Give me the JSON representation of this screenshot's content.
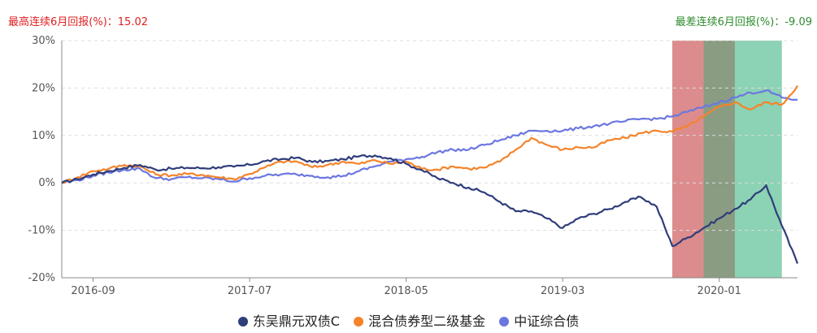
{
  "header": {
    "best_label": "最高连续6月回报(%)：",
    "best_value": "15.02",
    "worst_label": "最差连续6月回报(%)：",
    "worst_value": "-9.09"
  },
  "colors": {
    "fund": "#2f3d7a",
    "bond2": "#f5832a",
    "index": "#6b77e0",
    "best_band": "#dc8c8c",
    "worst_band": "#8cd2b4",
    "overlap_band": "#8a9c82",
    "best_text": "#e02020",
    "worst_text": "#2e8b2e"
  },
  "chart_data": {
    "type": "line",
    "x_tick_labels": [
      "2016-09",
      "2017-07",
      "2018-05",
      "2019-03",
      "2020-01"
    ],
    "x_range": [
      "2016-07",
      "2020-06"
    ],
    "ylim": [
      -20,
      30
    ],
    "y_ticks": [
      -20,
      -10,
      0,
      10,
      20,
      30
    ],
    "y_unit": "%",
    "grid": "horizontal-dashed",
    "legend_position": "bottom",
    "highlight_bands": [
      {
        "label": "最高连续6月回报",
        "start": "2019-10",
        "end": "2020-02"
      },
      {
        "label": "最差连续6月回报",
        "start": "2019-12",
        "end": "2020-05"
      }
    ],
    "series": [
      {
        "name": "东吴鼎元双债C",
        "color_key": "fund",
        "points": [
          [
            "2016-07",
            0
          ],
          [
            "2016-08",
            0.8
          ],
          [
            "2016-09",
            1.8
          ],
          [
            "2016-10",
            2.5
          ],
          [
            "2016-11",
            3.2
          ],
          [
            "2016-12",
            3.8
          ],
          [
            "2017-01",
            2.8
          ],
          [
            "2017-02",
            3.0
          ],
          [
            "2017-03",
            3.2
          ],
          [
            "2017-04",
            3.1
          ],
          [
            "2017-05",
            3.3
          ],
          [
            "2017-06",
            3.4
          ],
          [
            "2017-07",
            3.8
          ],
          [
            "2017-08",
            4.6
          ],
          [
            "2017-09",
            5.0
          ],
          [
            "2017-10",
            5.3
          ],
          [
            "2017-11",
            4.4
          ],
          [
            "2017-12",
            4.6
          ],
          [
            "2018-01",
            5.0
          ],
          [
            "2018-02",
            5.6
          ],
          [
            "2018-03",
            5.8
          ],
          [
            "2018-04",
            5.2
          ],
          [
            "2018-05",
            4.0
          ],
          [
            "2018-06",
            2.7
          ],
          [
            "2018-07",
            1.0
          ],
          [
            "2018-08",
            0.0
          ],
          [
            "2018-09",
            -1.0
          ],
          [
            "2018-10",
            -2.0
          ],
          [
            "2018-11",
            -4.0
          ],
          [
            "2018-12",
            -6.0
          ],
          [
            "2019-01",
            -6.0
          ],
          [
            "2019-02",
            -7.5
          ],
          [
            "2019-03",
            -9.5
          ],
          [
            "2019-04",
            -7.5
          ],
          [
            "2019-05",
            -6.5
          ],
          [
            "2019-06",
            -5.5
          ],
          [
            "2019-07",
            -4.0
          ],
          [
            "2019-08",
            -3.0
          ],
          [
            "2019-09",
            -5.0
          ],
          [
            "2019-10",
            -13.3
          ],
          [
            "2019-11",
            -11.5
          ],
          [
            "2019-12",
            -9.5
          ],
          [
            "2020-01",
            -7.5
          ],
          [
            "2020-02",
            -5.5
          ],
          [
            "2020-03",
            -3.5
          ],
          [
            "2020-04",
            -0.5
          ],
          [
            "2020-05",
            -9.0
          ],
          [
            "2020-06",
            -17.0
          ]
        ]
      },
      {
        "name": "混合债券型二级基金",
        "color_key": "bond2",
        "points": [
          [
            "2016-07",
            0
          ],
          [
            "2016-08",
            1.2
          ],
          [
            "2016-09",
            2.5
          ],
          [
            "2016-10",
            3.0
          ],
          [
            "2016-11",
            3.8
          ],
          [
            "2016-12",
            3.5
          ],
          [
            "2017-01",
            1.8
          ],
          [
            "2017-02",
            1.6
          ],
          [
            "2017-03",
            1.9
          ],
          [
            "2017-04",
            1.7
          ],
          [
            "2017-05",
            1.2
          ],
          [
            "2017-06",
            0.8
          ],
          [
            "2017-07",
            1.9
          ],
          [
            "2017-08",
            3.3
          ],
          [
            "2017-09",
            4.5
          ],
          [
            "2017-10",
            4.5
          ],
          [
            "2017-11",
            3.3
          ],
          [
            "2017-12",
            3.8
          ],
          [
            "2018-01",
            4.5
          ],
          [
            "2018-02",
            4.0
          ],
          [
            "2018-03",
            4.8
          ],
          [
            "2018-04",
            4.0
          ],
          [
            "2018-05",
            4.5
          ],
          [
            "2018-06",
            3.0
          ],
          [
            "2018-07",
            2.8
          ],
          [
            "2018-08",
            3.5
          ],
          [
            "2018-09",
            3.0
          ],
          [
            "2018-10",
            3.2
          ],
          [
            "2018-11",
            4.5
          ],
          [
            "2018-12",
            7.0
          ],
          [
            "2019-01",
            9.5
          ],
          [
            "2019-02",
            8.0
          ],
          [
            "2019-03",
            7.0
          ],
          [
            "2019-04",
            7.5
          ],
          [
            "2019-05",
            7.5
          ],
          [
            "2019-06",
            9.0
          ],
          [
            "2019-07",
            9.5
          ],
          [
            "2019-08",
            10.5
          ],
          [
            "2019-09",
            11.0
          ],
          [
            "2019-10",
            10.8
          ],
          [
            "2019-11",
            12.0
          ],
          [
            "2019-12",
            14.0
          ],
          [
            "2020-01",
            16.0
          ],
          [
            "2020-02",
            17.0
          ],
          [
            "2020-03",
            15.5
          ],
          [
            "2020-04",
            17.0
          ],
          [
            "2020-05",
            16.5
          ],
          [
            "2020-06",
            20.5
          ]
        ]
      },
      {
        "name": "中证综合债",
        "color_key": "index",
        "points": [
          [
            "2016-07",
            0
          ],
          [
            "2016-08",
            0.6
          ],
          [
            "2016-09",
            1.5
          ],
          [
            "2016-10",
            2.2
          ],
          [
            "2016-11",
            2.8
          ],
          [
            "2016-12",
            3.0
          ],
          [
            "2017-01",
            1.0
          ],
          [
            "2017-02",
            0.8
          ],
          [
            "2017-03",
            1.2
          ],
          [
            "2017-04",
            1.0
          ],
          [
            "2017-05",
            0.8
          ],
          [
            "2017-06",
            0.3
          ],
          [
            "2017-07",
            1.0
          ],
          [
            "2017-08",
            1.5
          ],
          [
            "2017-09",
            1.8
          ],
          [
            "2017-10",
            1.8
          ],
          [
            "2017-11",
            1.5
          ],
          [
            "2017-12",
            1.2
          ],
          [
            "2018-01",
            1.5
          ],
          [
            "2018-02",
            2.5
          ],
          [
            "2018-03",
            3.5
          ],
          [
            "2018-04",
            4.5
          ],
          [
            "2018-05",
            5.0
          ],
          [
            "2018-06",
            5.5
          ],
          [
            "2018-07",
            6.5
          ],
          [
            "2018-08",
            7.0
          ],
          [
            "2018-09",
            7.0
          ],
          [
            "2018-10",
            8.0
          ],
          [
            "2018-11",
            9.0
          ],
          [
            "2018-12",
            10.0
          ],
          [
            "2019-01",
            11.0
          ],
          [
            "2019-02",
            11.0
          ],
          [
            "2019-03",
            11.0
          ],
          [
            "2019-04",
            11.5
          ],
          [
            "2019-05",
            12.0
          ],
          [
            "2019-06",
            12.5
          ],
          [
            "2019-07",
            13.0
          ],
          [
            "2019-08",
            13.5
          ],
          [
            "2019-09",
            13.5
          ],
          [
            "2019-10",
            14.0
          ],
          [
            "2019-11",
            15.0
          ],
          [
            "2019-12",
            16.0
          ],
          [
            "2020-01",
            17.0
          ],
          [
            "2020-02",
            18.0
          ],
          [
            "2020-03",
            19.0
          ],
          [
            "2020-04",
            19.5
          ],
          [
            "2020-05",
            18.0
          ],
          [
            "2020-06",
            17.5
          ]
        ]
      }
    ]
  }
}
